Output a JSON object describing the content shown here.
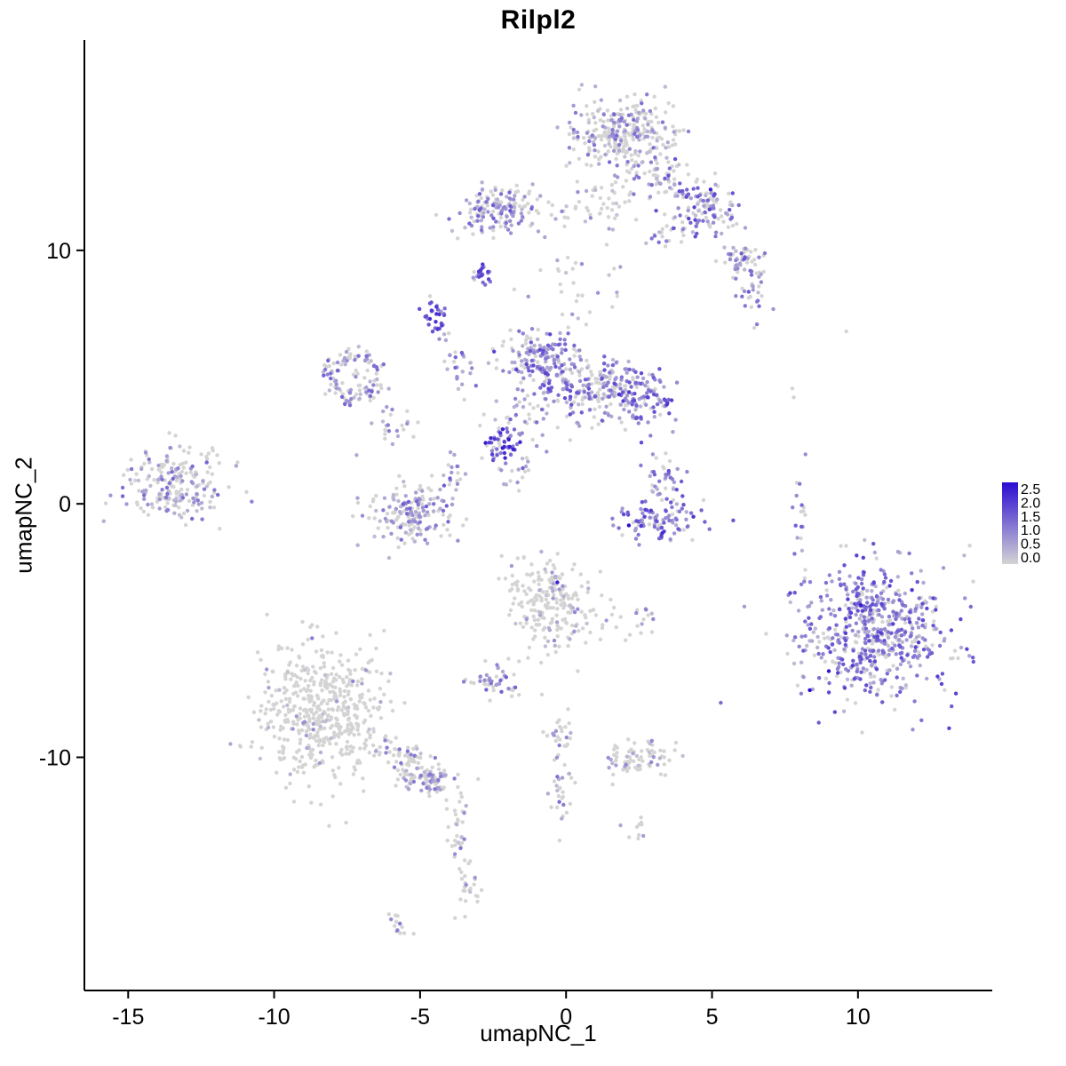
{
  "chart_data": {
    "type": "scatter",
    "title": "Rilpl2",
    "xlabel": "umapNC_1",
    "ylabel": "umapNC_2",
    "xlim": [
      -16.5,
      14.6
    ],
    "ylim": [
      -19.2,
      18.3
    ],
    "xticks": [
      -15,
      -10,
      -5,
      0,
      5,
      10
    ],
    "yticks": [
      -10,
      0,
      10
    ],
    "grid": false,
    "background": "#ffffff",
    "point_radius": 2.2,
    "seed": 20,
    "legend": {
      "position": "right",
      "labels": [
        "2.5",
        "2.0",
        "1.5",
        "1.0",
        "0.5",
        "0.0"
      ],
      "max_value": 2.5,
      "color_high": "#2a0dd1",
      "color_low": "#d4d4d4"
    },
    "clusters": [
      {
        "cx": 1.9,
        "cy": 14.6,
        "sx": 0.85,
        "sy": 0.75,
        "n": 300,
        "frac_pos": 0.35,
        "expr": [
          0.2,
          1.4
        ]
      },
      {
        "cx": 1.1,
        "cy": 11.8,
        "sx": 0.5,
        "sy": 0.55,
        "n": 40,
        "frac_pos": 0.3,
        "expr": [
          0.2,
          1.2
        ]
      },
      {
        "cx": 3.2,
        "cy": 12.9,
        "sx": 0.5,
        "sy": 0.45,
        "n": 45,
        "frac_pos": 0.5,
        "expr": [
          0.3,
          1.6
        ]
      },
      {
        "cx": 4.6,
        "cy": 11.7,
        "sx": 0.75,
        "sy": 0.55,
        "n": 130,
        "frac_pos": 0.5,
        "expr": [
          0.3,
          1.8
        ],
        "rot": -45
      },
      {
        "cx": 6.1,
        "cy": 9.5,
        "sx": 0.4,
        "sy": 0.4,
        "n": 55,
        "frac_pos": 0.5,
        "expr": [
          0.3,
          1.6
        ]
      },
      {
        "cx": 6.4,
        "cy": 8.2,
        "sx": 0.35,
        "sy": 0.5,
        "n": 22,
        "frac_pos": 0.4,
        "expr": [
          0.3,
          1.4
        ]
      },
      {
        "cx": 3.3,
        "cy": 10.7,
        "sx": 0.35,
        "sy": 0.3,
        "n": 18,
        "frac_pos": 0.5,
        "expr": [
          0.3,
          1.5
        ]
      },
      {
        "cx": -2.35,
        "cy": 11.6,
        "sx": 0.65,
        "sy": 0.5,
        "n": 150,
        "frac_pos": 0.6,
        "expr": [
          0.3,
          1.6
        ]
      },
      {
        "cx": -0.5,
        "cy": 11.3,
        "sx": 0.5,
        "sy": 0.4,
        "n": 12,
        "frac_pos": 0.3,
        "expr": [
          0.2,
          1.0
        ]
      },
      {
        "cx": 0.6,
        "cy": 8.6,
        "sx": 0.8,
        "sy": 0.9,
        "n": 30,
        "frac_pos": 0.35,
        "expr": [
          0.2,
          1.3
        ]
      },
      {
        "cx": -2.85,
        "cy": 8.95,
        "sx": 0.16,
        "sy": 0.24,
        "n": 26,
        "frac_pos": 0.85,
        "expr": [
          0.7,
          2.0
        ]
      },
      {
        "cx": -4.5,
        "cy": 7.3,
        "sx": 0.22,
        "sy": 0.35,
        "n": 32,
        "frac_pos": 0.88,
        "expr": [
          0.7,
          2.2
        ]
      },
      {
        "cx": -3.75,
        "cy": 5.5,
        "sx": 0.25,
        "sy": 0.75,
        "n": 28,
        "frac_pos": 0.6,
        "expr": [
          0.3,
          1.6
        ],
        "rot": 20
      },
      {
        "shape": "ring",
        "cx": -7.25,
        "cy": 5.0,
        "r": 0.8,
        "w": 0.35,
        "sx": 0.45,
        "sy": 0.5,
        "n": 120,
        "frac_pos": 0.55,
        "expr": [
          0.3,
          1.5
        ]
      },
      {
        "cx": -5.9,
        "cy": 3.0,
        "sx": 0.5,
        "sy": 0.5,
        "n": 24,
        "frac_pos": 0.5,
        "expr": [
          0.3,
          1.3
        ]
      },
      {
        "cx": -0.9,
        "cy": 5.7,
        "sx": 0.75,
        "sy": 0.7,
        "n": 170,
        "frac_pos": 0.75,
        "expr": [
          0.4,
          1.8
        ]
      },
      {
        "cx": 1.2,
        "cy": 4.5,
        "sx": 1.0,
        "sy": 0.6,
        "n": 210,
        "frac_pos": 0.65,
        "expr": [
          0.3,
          1.7
        ]
      },
      {
        "cx": 2.55,
        "cy": 4.2,
        "sx": 0.5,
        "sy": 0.5,
        "n": 90,
        "frac_pos": 0.85,
        "expr": [
          0.6,
          2.0
        ]
      },
      {
        "cx": -2.2,
        "cy": 2.35,
        "sx": 0.3,
        "sy": 0.35,
        "n": 50,
        "frac_pos": 0.9,
        "expr": [
          0.8,
          2.4
        ]
      },
      {
        "cx": -1.2,
        "cy": 3.4,
        "sx": 0.7,
        "sy": 0.6,
        "n": 40,
        "frac_pos": 0.55,
        "expr": [
          0.3,
          1.5
        ]
      },
      {
        "cx": -1.6,
        "cy": 1.3,
        "sx": 0.3,
        "sy": 0.5,
        "n": 20,
        "frac_pos": 0.5,
        "expr": [
          0.3,
          1.5
        ],
        "rot": -35
      },
      {
        "cx": -13.4,
        "cy": 0.8,
        "sx": 0.9,
        "sy": 0.75,
        "n": 210,
        "frac_pos": 0.45,
        "expr": [
          0.25,
          1.4
        ]
      },
      {
        "cx": -5.2,
        "cy": -0.4,
        "sx": 0.75,
        "sy": 0.6,
        "n": 180,
        "frac_pos": 0.55,
        "expr": [
          0.3,
          1.5
        ]
      },
      {
        "cx": -3.95,
        "cy": 1.2,
        "sx": 0.2,
        "sy": 0.4,
        "n": 16,
        "frac_pos": 0.5,
        "expr": [
          0.3,
          1.2
        ]
      },
      {
        "cx": 3.3,
        "cy": 1.0,
        "sx": 0.3,
        "sy": 0.4,
        "n": 40,
        "frac_pos": 0.7,
        "expr": [
          0.4,
          1.8
        ]
      },
      {
        "cx": 3.3,
        "cy": -0.7,
        "sx": 0.75,
        "sy": 0.4,
        "n": 100,
        "frac_pos": 0.8,
        "expr": [
          0.5,
          2.0
        ]
      },
      {
        "cx": -0.6,
        "cy": -3.9,
        "sx": 0.7,
        "sy": 0.95,
        "n": 210,
        "frac_pos": 0.18,
        "expr": [
          0.2,
          1.0
        ]
      },
      {
        "cx": 1.1,
        "cy": -4.6,
        "sx": 0.5,
        "sy": 0.4,
        "n": 20,
        "frac_pos": 0.2,
        "expr": [
          0.2,
          0.9
        ]
      },
      {
        "cx": 2.65,
        "cy": -4.4,
        "sx": 0.25,
        "sy": 0.25,
        "n": 12,
        "frac_pos": 0.5,
        "expr": [
          0.3,
          1.3
        ]
      },
      {
        "cx": -2.55,
        "cy": -7.1,
        "sx": 0.5,
        "sy": 0.4,
        "n": 48,
        "frac_pos": 0.55,
        "expr": [
          0.3,
          1.5
        ]
      },
      {
        "cx": -8.5,
        "cy": -8.2,
        "sx": 1.15,
        "sy": 1.35,
        "n": 520,
        "frac_pos": 0.07,
        "expr": [
          0.2,
          0.9
        ]
      },
      {
        "cx": -5.3,
        "cy": -10.4,
        "sx": 0.9,
        "sy": 0.4,
        "n": 110,
        "frac_pos": 0.3,
        "expr": [
          0.25,
          1.2
        ],
        "rot": -35
      },
      {
        "cx": -4.6,
        "cy": -10.9,
        "sx": 0.3,
        "sy": 0.3,
        "n": 35,
        "frac_pos": 0.5,
        "expr": [
          0.3,
          1.4
        ]
      },
      {
        "cx": -3.6,
        "cy": -13.0,
        "sx": 0.2,
        "sy": 0.85,
        "n": 35,
        "frac_pos": 0.3,
        "expr": [
          0.2,
          1.2
        ]
      },
      {
        "cx": -3.4,
        "cy": -15.2,
        "sx": 0.28,
        "sy": 0.42,
        "n": 26,
        "frac_pos": 0.15,
        "expr": [
          0.2,
          0.9
        ]
      },
      {
        "cx": -5.85,
        "cy": -16.6,
        "sx": 0.3,
        "sy": 0.18,
        "n": 14,
        "frac_pos": 0.25,
        "expr": [
          0.3,
          1.1
        ],
        "rot": -35
      },
      {
        "cx": -0.2,
        "cy": -9.1,
        "sx": 0.3,
        "sy": 0.35,
        "n": 24,
        "frac_pos": 0.3,
        "expr": [
          0.2,
          1.1
        ]
      },
      {
        "cx": -0.2,
        "cy": -11.3,
        "sx": 0.2,
        "sy": 0.85,
        "n": 30,
        "frac_pos": 0.35,
        "expr": [
          0.3,
          1.4
        ]
      },
      {
        "cx": 2.4,
        "cy": -10.0,
        "sx": 0.55,
        "sy": 0.35,
        "n": 75,
        "frac_pos": 0.25,
        "expr": [
          0.2,
          1.1
        ]
      },
      {
        "cx": 2.5,
        "cy": -13.0,
        "sx": 0.25,
        "sy": 0.3,
        "n": 10,
        "frac_pos": 0.2,
        "expr": [
          0.2,
          0.8
        ]
      },
      {
        "cx": 10.6,
        "cy": -5.1,
        "sx": 1.3,
        "sy": 1.35,
        "n": 620,
        "frac_pos": 0.72,
        "expr": [
          0.3,
          1.9
        ]
      },
      {
        "cx": 8.05,
        "cy": -0.5,
        "sx": 0.15,
        "sy": 0.9,
        "n": 16,
        "frac_pos": 0.6,
        "expr": [
          0.4,
          1.5
        ]
      }
    ],
    "singles": [
      [
        4.95,
        12.4,
        2.2
      ],
      [
        5.6,
        11.6,
        1.6
      ],
      [
        2.15,
        -0.85,
        2.5
      ],
      [
        3.3,
        -1.15,
        2.1
      ],
      [
        -0.3,
        -3.1,
        2.3
      ],
      [
        8.35,
        -7.35,
        2.5
      ],
      [
        9.0,
        -6.6,
        2.4
      ],
      [
        10.1,
        -4.0,
        2.3
      ],
      [
        11.85,
        -3.4,
        2.0
      ],
      [
        9.6,
        6.8,
        0
      ],
      [
        7.75,
        4.55,
        0
      ],
      [
        7.8,
        4.2,
        0
      ],
      [
        8.2,
        1.95,
        0.9
      ],
      [
        5.3,
        -7.85,
        1.3
      ],
      [
        -12.1,
        2.1,
        0
      ],
      [
        -11.3,
        1.5,
        0.6
      ],
      [
        -8.7,
        -5.3,
        1.1
      ],
      [
        -7.3,
        -7.0,
        1.0
      ],
      [
        0.4,
        -6.6,
        0
      ],
      [
        -0.5,
        11.4,
        0
      ]
    ]
  }
}
